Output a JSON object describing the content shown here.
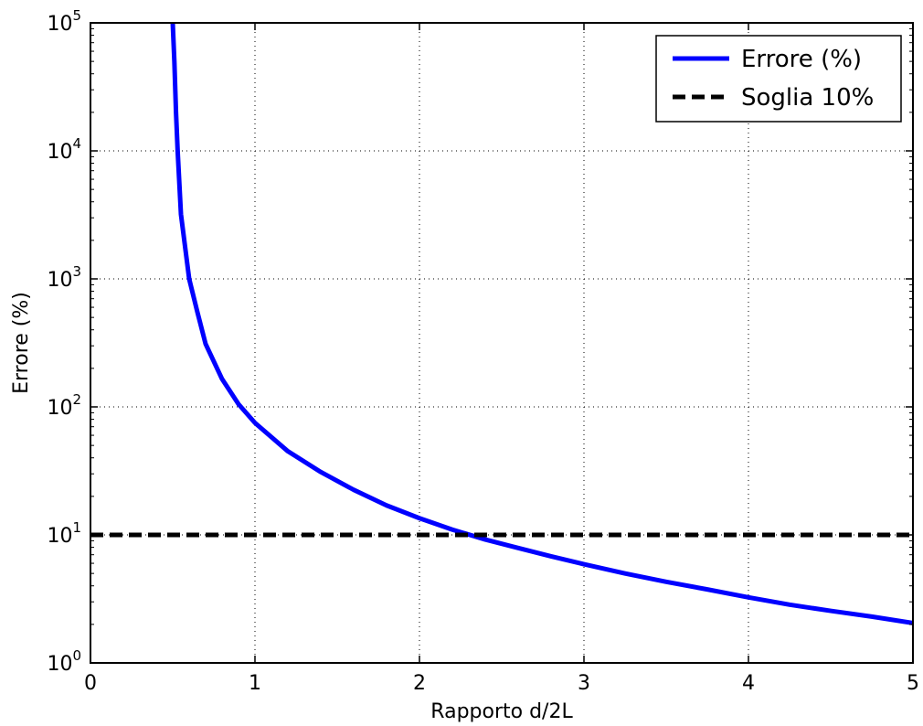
{
  "chart_data": {
    "type": "line",
    "title": "",
    "xlabel": "Rapporto d/2L",
    "ylabel": "Errore (%)",
    "xlim": [
      0,
      5
    ],
    "ylim": [
      1,
      100000
    ],
    "yscale": "log",
    "grid": true,
    "legend_position": "top-right",
    "xticks": [
      {
        "value": 0,
        "label": "0"
      },
      {
        "value": 1,
        "label": "1"
      },
      {
        "value": 2,
        "label": "2"
      },
      {
        "value": 3,
        "label": "3"
      },
      {
        "value": 4,
        "label": "4"
      },
      {
        "value": 5,
        "label": "5"
      }
    ],
    "yticks": [
      {
        "value": 1,
        "base": "10",
        "exp": "0"
      },
      {
        "value": 10,
        "base": "10",
        "exp": "1"
      },
      {
        "value": 100,
        "base": "10",
        "exp": "2"
      },
      {
        "value": 1000,
        "base": "10",
        "exp": "3"
      },
      {
        "value": 10000,
        "base": "10",
        "exp": "4"
      },
      {
        "value": 100000,
        "base": "10",
        "exp": "5"
      }
    ],
    "series": [
      {
        "name": "Errore (%)",
        "color": "#0000ff",
        "style": "solid",
        "x": [
          0.5,
          0.51,
          0.52,
          0.53,
          0.55,
          0.6,
          0.65,
          0.7,
          0.8,
          0.9,
          1.0,
          1.2,
          1.4,
          1.6,
          1.8,
          2.0,
          2.2,
          2.4,
          2.6,
          2.8,
          3.0,
          3.25,
          3.5,
          3.75,
          4.0,
          4.25,
          4.5,
          4.75,
          5.0
        ],
        "y": [
          100000,
          50000,
          20000,
          10000,
          3200,
          1000,
          550,
          310,
          165,
          105,
          75,
          45,
          31,
          22.5,
          17,
          13.5,
          11,
          9.2,
          7.9,
          6.8,
          5.9,
          5.0,
          4.3,
          3.75,
          3.25,
          2.85,
          2.55,
          2.3,
          2.05
        ]
      },
      {
        "name": "Soglia 10%",
        "color": "#000000",
        "style": "dashed",
        "x": [
          0,
          5
        ],
        "y": [
          10,
          10
        ]
      }
    ]
  }
}
